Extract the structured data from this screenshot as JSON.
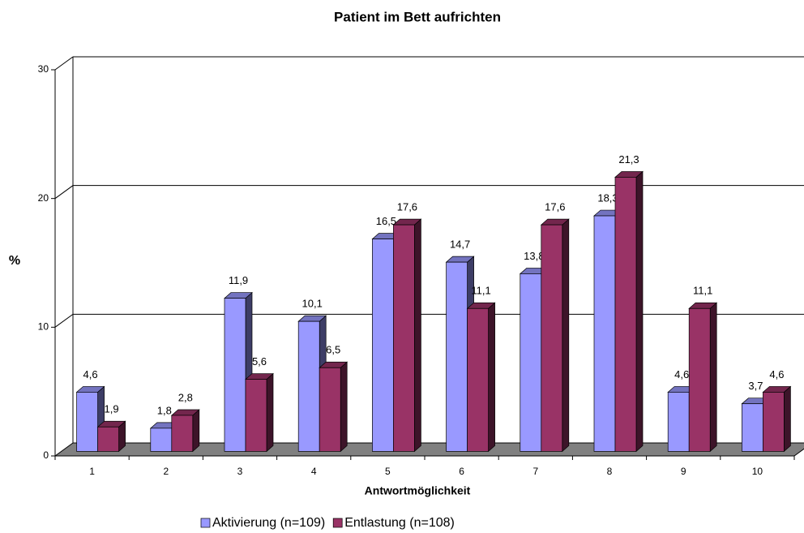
{
  "chart_data": {
    "type": "bar3d",
    "title": "Patient im Bett aufrichten",
    "x_label": "Antwortmöglichkeit",
    "y_label": "%",
    "categories": [
      "1",
      "2",
      "3",
      "4",
      "5",
      "6",
      "7",
      "8",
      "9",
      "10"
    ],
    "series": [
      {
        "name": "Aktivierung (n=109)",
        "color": "#9999ff",
        "values": [
          4.6,
          1.8,
          11.9,
          10.1,
          16.5,
          14.7,
          13.8,
          18.3,
          4.6,
          3.7
        ],
        "value_labels": [
          "4,6",
          "1,8",
          "11,9",
          "10,1",
          "16,5",
          "14,7",
          "13,8",
          "18,3",
          "4,6",
          "3,7"
        ]
      },
      {
        "name": "Entlastung (n=108)",
        "color": "#993366",
        "values": [
          1.9,
          2.8,
          5.6,
          6.5,
          17.6,
          11.1,
          17.6,
          21.3,
          11.1,
          4.6
        ],
        "value_labels": [
          "1,9",
          "2,8",
          "5,6",
          "6,5",
          "17,6",
          "11,1",
          "17,6",
          "21,3",
          "11,1",
          "4,6"
        ]
      }
    ],
    "ylim": [
      0,
      30
    ],
    "yticks": [
      0,
      10,
      20,
      30
    ],
    "grid": true,
    "legend": "bottom"
  }
}
